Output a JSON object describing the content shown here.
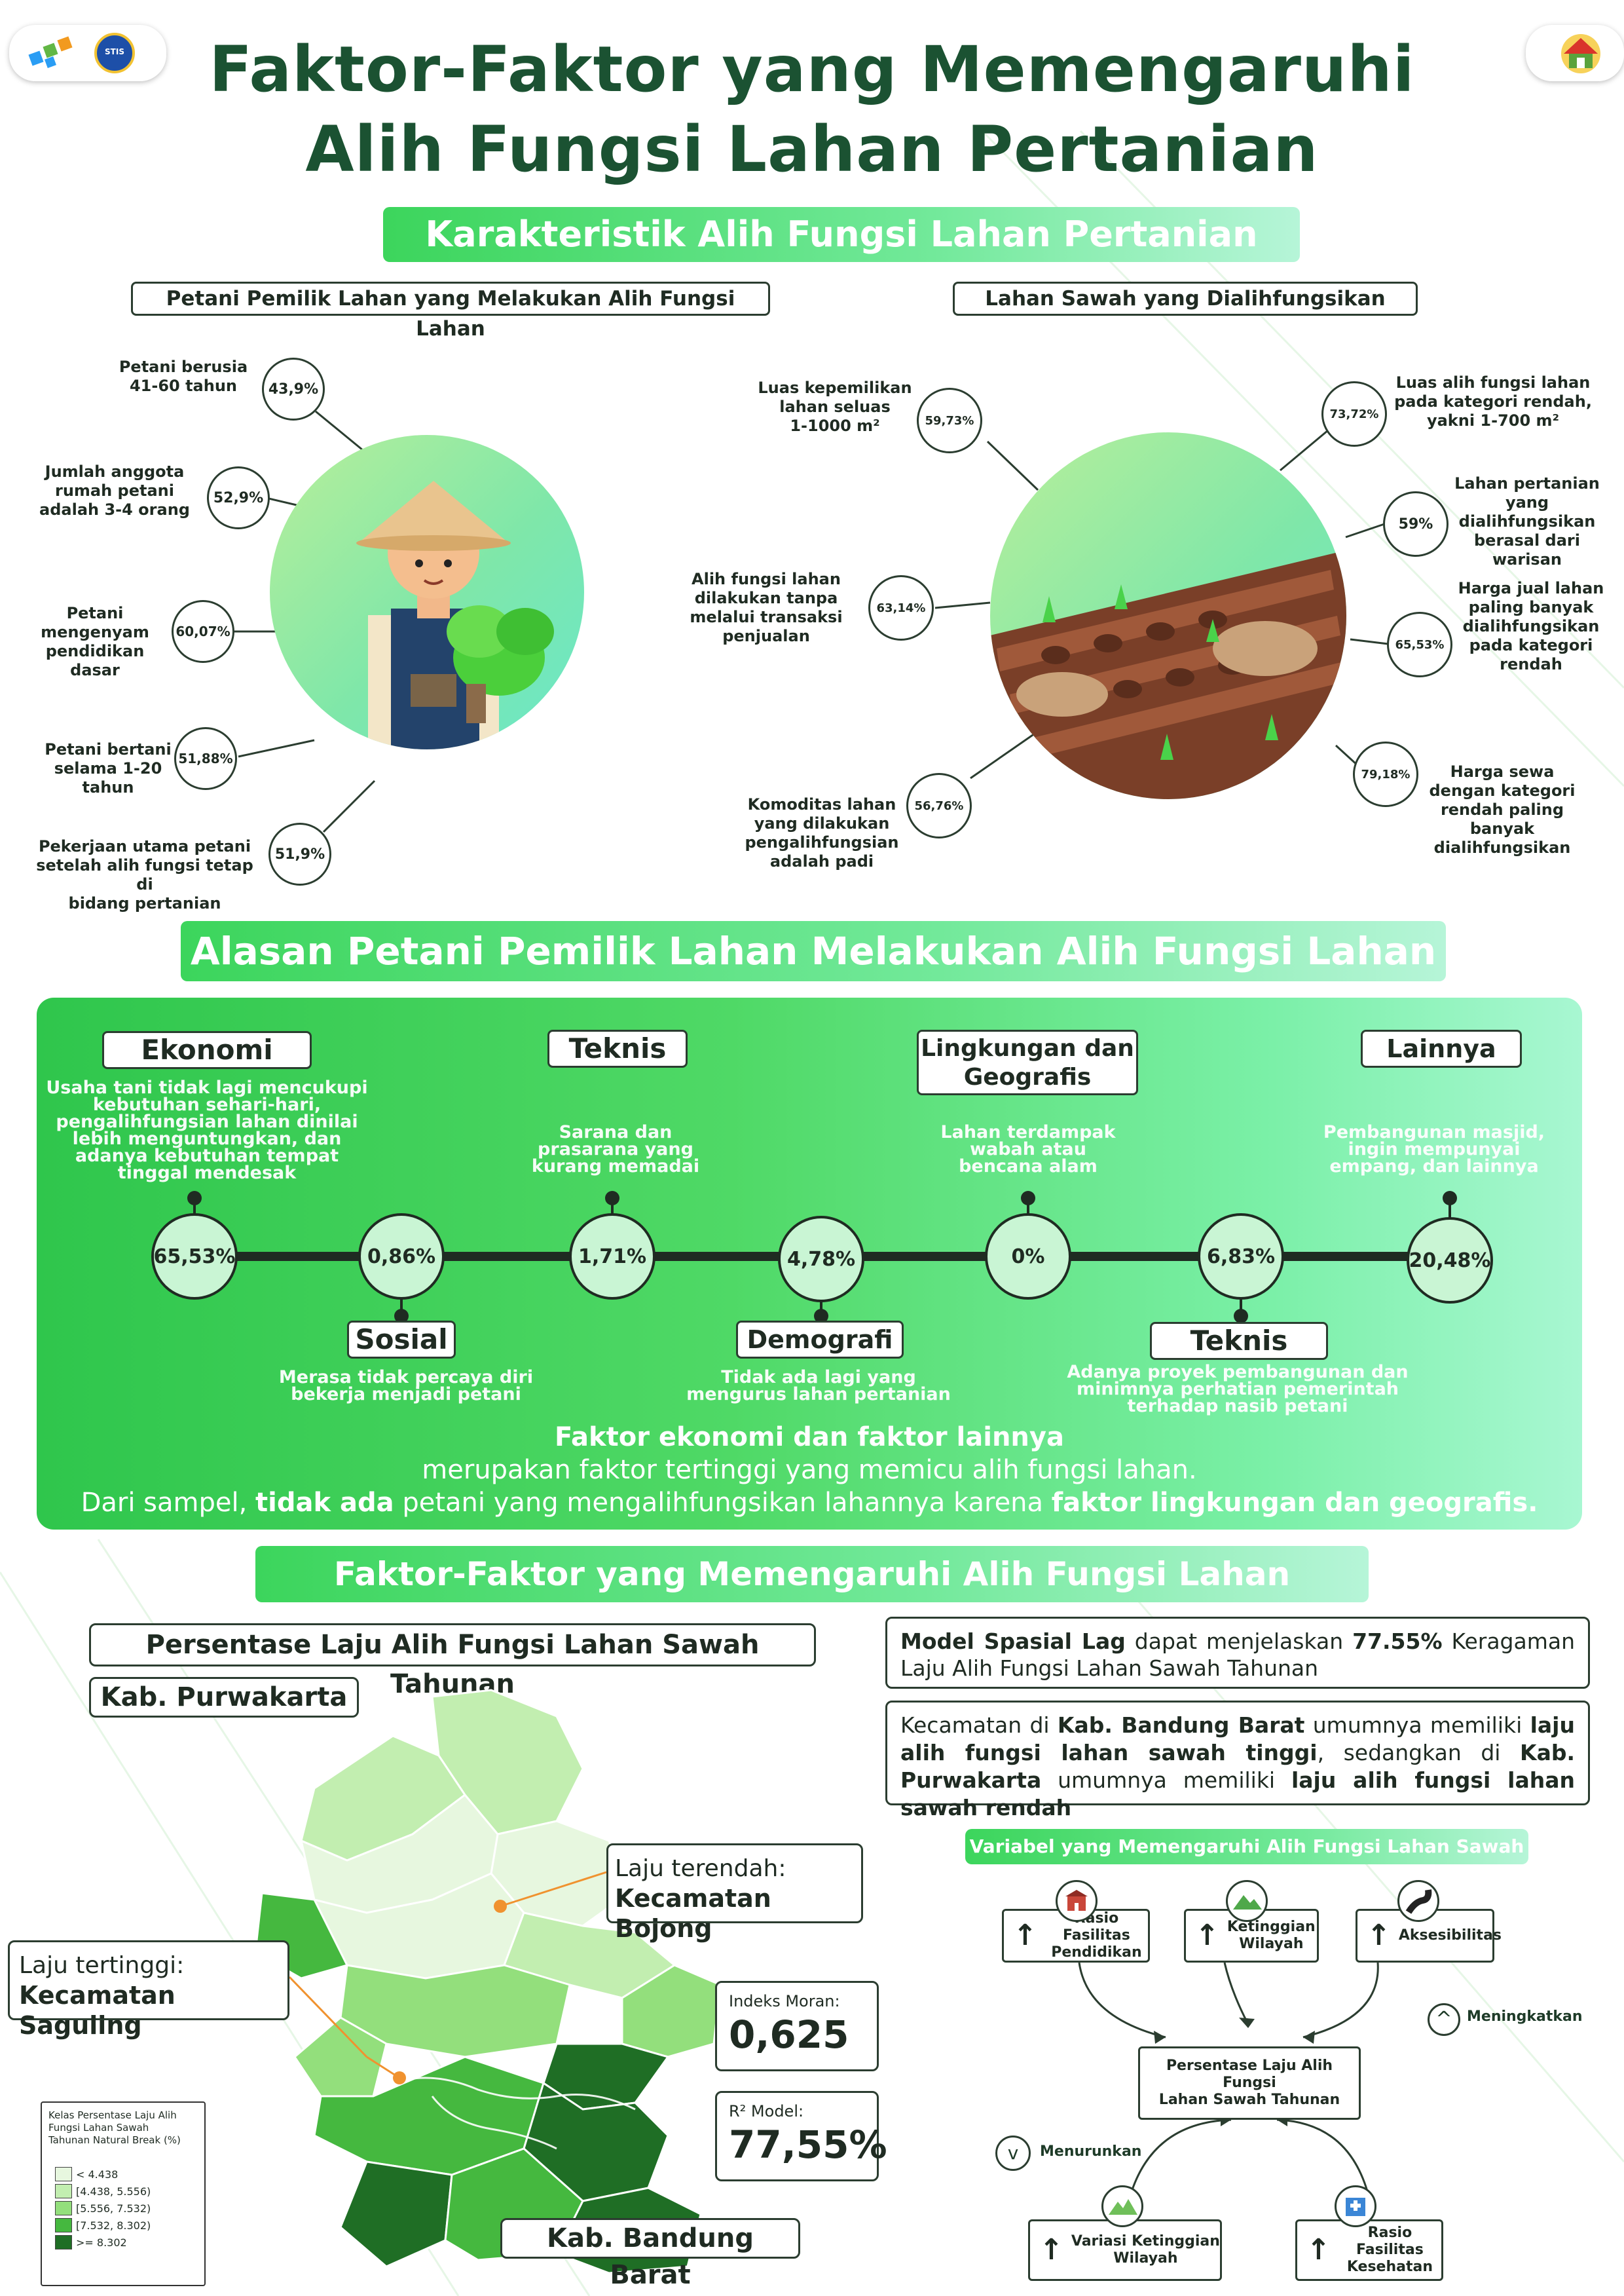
{
  "header": {
    "title_line1": "Faktor-Faktor yang Memengaruhi",
    "title_line2": "Alih Fungsi Lahan Pertanian",
    "logo_left_1": "bps-logo",
    "logo_left_2": "stis-logo",
    "logo_right": "house-logo",
    "stis_text": "STIS"
  },
  "section1": {
    "banner": "Karakteristik Alih Fungsi Lahan Pertanian",
    "left_label": "Petani Pemilik Lahan yang Melakukan Alih Fungsi Lahan",
    "right_label": "Lahan Sawah yang Dialihfungsikan",
    "left_stats": [
      {
        "value": "43,9%",
        "text": "Petani berusia\n41-60 tahun"
      },
      {
        "value": "52,9%",
        "text": "Jumlah anggota\nrumah petani\nadalah 3-4 orang"
      },
      {
        "value": "60,07%",
        "text": "Petani\nmengenyam\npendidikan dasar"
      },
      {
        "value": "51,88%",
        "text": "Petani bertani\nselama 1-20\ntahun"
      },
      {
        "value": "51,9%",
        "text": "Pekerjaan utama petani\nsetelah alih fungsi tetap di\nbidang pertanian"
      }
    ],
    "right_left_stats": [
      {
        "value": "59,73%",
        "text": "Luas kepemilikan\nlahan seluas\n1-1000 m²"
      },
      {
        "value": "63,14%",
        "text": "Alih fungsi lahan\ndilakukan tanpa\nmelalui transaksi\npenjualan"
      },
      {
        "value": "56,76%",
        "text": "Komoditas lahan\nyang dilakukan\npengalihfungsian\nadalah padi"
      }
    ],
    "right_right_stats": [
      {
        "value": "73,72%",
        "text": "Luas alih fungsi lahan\npada kategori rendah,\nyakni 1-700 m²"
      },
      {
        "value": "59%",
        "text": "Lahan pertanian\nyang\ndialihfungsikan\nberasal dari\nwarisan"
      },
      {
        "value": "65,53%",
        "text": "Harga jual lahan\npaling banyak\ndialihfungsikan\npada kategori\nrendah"
      },
      {
        "value": "79,18%",
        "text": "Harga sewa\ndengan kategori\nrendah paling\nbanyak\ndialihfungsikan"
      }
    ]
  },
  "section2": {
    "banner": "Alasan Petani Pemilik Lahan Melakukan Alih Fungsi Lahan",
    "top": [
      {
        "label": "Ekonomi",
        "desc": "Usaha tani tidak lagi mencukupi\nkebutuhan sehari-hari,\npengalihfungsian lahan dinilai\nlebih menguntungkan, dan\nadanya kebutuhan tempat\ntinggal mendesak"
      },
      {
        "label": "Teknis",
        "desc": "Sarana dan\nprasarana yang\nkurang memadai"
      },
      {
        "label": "Lingkungan dan\nGeografis",
        "desc": "Lahan terdampak\nwabah atau\nbencana alam"
      },
      {
        "label": "Lainnya",
        "desc": "Pembangunan masjid,\ningin mempunyai\nempang, dan lainnya"
      }
    ],
    "nodes": [
      "65,53%",
      "0,86%",
      "1,71%",
      "4,78%",
      "0%",
      "6,83%",
      "20,48%"
    ],
    "bottom": [
      {
        "label": "Sosial",
        "desc": "Merasa tidak percaya diri\nbekerja menjadi petani"
      },
      {
        "label": "Demografi",
        "desc": "Tidak ada lagi yang\nmengurus lahan pertanian"
      },
      {
        "label": "Teknis",
        "desc": "Adanya proyek pembangunan dan\nminimnya perhatian pemerintah\nterhadap nasib petani"
      }
    ],
    "conclusion": {
      "line1": "Faktor ekonomi dan faktor lainnya",
      "line2": "merupakan faktor tertinggi yang memicu alih fungsi lahan.",
      "line3_a": "Dari sampel, ",
      "line3_b": "tidak ada",
      "line3_c": " petani yang mengalihfungsikan lahannya karena ",
      "line3_d": "faktor lingkungan dan geografis."
    }
  },
  "section3": {
    "banner": "Faktor-Faktor yang Memengaruhi Alih Fungsi Lahan Pertanian",
    "map_title": "Persentase Laju Alih Fungsi Lahan Sawah Tahunan",
    "kab_purwakarta": "Kab. Purwakarta",
    "kab_bandung_barat": "Kab. Bandung Barat",
    "lowest_label": "Laju terendah:",
    "lowest_value": "Kecamatan Bojong",
    "highest_label": "Laju tertinggi:",
    "highest_value": "Kecamatan Saguling",
    "moran_label": "Indeks Moran:",
    "moran_value": "0,625",
    "r2_label": "R² Model:",
    "r2_value": "77,55%",
    "legend_title": "Kelas Persentase Laju Alih\nFungsi Lahan Sawah\nTahunan Natural Break (%)",
    "legend": [
      {
        "label": "< 4.438",
        "color": "#e7f7df"
      },
      {
        "label": "[4.438, 5.556)",
        "color": "#c2eeb0"
      },
      {
        "label": "[5.556, 7.532)",
        "color": "#93df7c"
      },
      {
        "label": "[7.532, 8.302)",
        "color": "#45b83f"
      },
      {
        "label": ">= 8.302",
        "color": "#1f6e25"
      }
    ],
    "model_a": "Model Spasial Lag",
    "model_b": " dapat menjelaskan ",
    "model_c": "77.55%",
    "model_d": " Keragaman Laju Alih Fungsi Lahan Sawah Tahunan",
    "kec_a": "Kecamatan di ",
    "kec_b": "Kab. Bandung Barat",
    "kec_c": " umumnya memiliki ",
    "kec_d": "laju alih fungsi lahan sawah tinggi",
    "kec_e": ", sedangkan di ",
    "kec_f": "Kab. Purwakarta",
    "kec_g": " umumnya memiliki ",
    "kec_h": "laju alih fungsi lahan sawah rendah",
    "vars_banner": "Variabel yang Memengaruhi Alih Fungsi Lahan Sawah",
    "var_pendidikan": "Rasio Fasilitas\nPendidikan",
    "var_ketinggian": "Ketinggian\nWilayah",
    "var_aksesibilitas": "Aksesibilitas",
    "center_box": "Persentase Laju Alih Fungsi\nLahan Sawah Tahunan",
    "var_variasi": "Variasi Ketinggian\nWilayah",
    "var_kesehatan": "Rasio Fasilitas\nKesehatan",
    "meningkatkan": "Meningkatkan",
    "menurunkan": "Menurunkan",
    "arrow_up": "↑",
    "arrow_down": "↓"
  }
}
